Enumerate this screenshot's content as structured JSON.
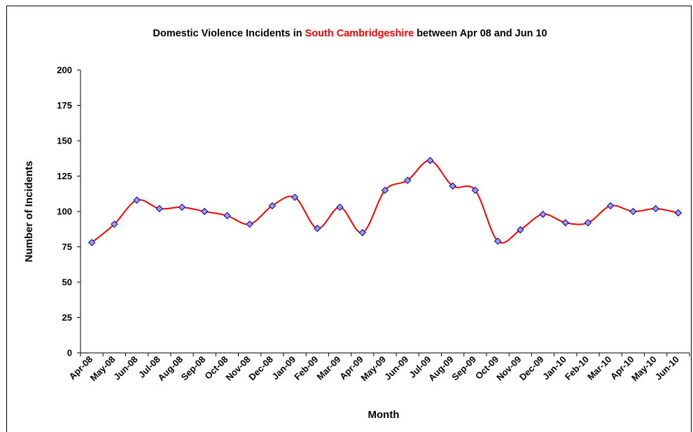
{
  "chart_data": {
    "type": "line",
    "title_parts": [
      {
        "text": "Domestic Violence Incidents in ",
        "color": "#000000"
      },
      {
        "text": "South Cambridgeshire",
        "color": "#ff0000"
      },
      {
        "text": " between Apr 08 and Jun 10",
        "color": "#000000"
      }
    ],
    "xlabel": "Month",
    "ylabel": "Number of Incidents",
    "ylim": [
      0,
      200
    ],
    "yticks": [
      0,
      25,
      50,
      75,
      100,
      125,
      150,
      175,
      200
    ],
    "categories": [
      "Apr-08",
      "May-08",
      "Jun-08",
      "Jul-08",
      "Aug-08",
      "Sep-08",
      "Oct-08",
      "Nov-08",
      "Dec-08",
      "Jan-09",
      "Feb-09",
      "Mar-09",
      "Apr-09",
      "May-09",
      "Jun-09",
      "Jul-09",
      "Aug-09",
      "Sep-09",
      "Oct-09",
      "Nov-09",
      "Dec-09",
      "Jan-10",
      "Feb-10",
      "Mar-10",
      "Apr-10",
      "May-10",
      "Jun-10"
    ],
    "values": [
      78,
      91,
      108,
      102,
      103,
      100,
      97,
      91,
      104,
      110,
      88,
      103,
      85,
      115,
      122,
      136,
      118,
      115,
      79,
      87,
      98,
      92,
      92,
      104,
      100,
      102,
      99
    ],
    "line_color": "#ff0000",
    "marker_fill": "#9999ff",
    "marker_stroke": "#000080",
    "grid": false,
    "legend": "none"
  }
}
